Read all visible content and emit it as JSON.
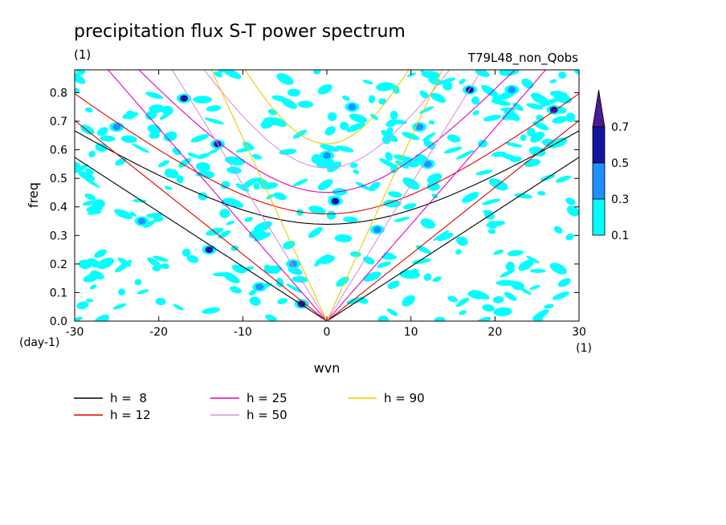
{
  "chart_data": {
    "type": "heatmap",
    "title": "precipitation flux S-T power spectrum",
    "subtitle_left": "(1)",
    "subtitle_right": "T79L48_non_Qobs",
    "xlabel": "wvn",
    "ylabel": "freq",
    "x_unit": "(1)",
    "y_unit": "(day-1)",
    "xlim": [
      -30,
      30
    ],
    "ylim": [
      0,
      0.88
    ],
    "xticks": [
      "-30",
      "-20",
      "-10",
      "0",
      "10",
      "20",
      "30"
    ],
    "yticks": [
      "0.0",
      "0.1",
      "0.2",
      "0.3",
      "0.4",
      "0.5",
      "0.6",
      "0.7",
      "0.8"
    ],
    "colorbar": {
      "levels": [
        "0.1",
        "0.3",
        "0.5",
        "0.7"
      ],
      "colors": [
        "#00ffff",
        "#1e90ff",
        "#1414a0",
        "#4b1a96"
      ]
    },
    "blobs": [
      {
        "x": -25,
        "y": 0.68,
        "v": 0.3
      },
      {
        "x": -17,
        "y": 0.78,
        "v": 0.5
      },
      {
        "x": -13,
        "y": 0.62,
        "v": 0.5
      },
      {
        "x": -14,
        "y": 0.25,
        "v": 0.5
      },
      {
        "x": -8,
        "y": 0.12,
        "v": 0.3
      },
      {
        "x": -3,
        "y": 0.06,
        "v": 0.5
      },
      {
        "x": 1,
        "y": 0.42,
        "v": 0.5
      },
      {
        "x": 0,
        "y": 0.58,
        "v": 0.3
      },
      {
        "x": 11,
        "y": 0.68,
        "v": 0.3
      },
      {
        "x": 17,
        "y": 0.81,
        "v": 0.5
      },
      {
        "x": 22,
        "y": 0.81,
        "v": 0.3
      },
      {
        "x": 27,
        "y": 0.74,
        "v": 0.5
      },
      {
        "x": 3,
        "y": 0.75,
        "v": 0.3
      },
      {
        "x": 12,
        "y": 0.55,
        "v": 0.3
      },
      {
        "x": -22,
        "y": 0.35,
        "v": 0.3
      },
      {
        "x": -4,
        "y": 0.2,
        "v": 0.3
      },
      {
        "x": 6,
        "y": 0.32,
        "v": 0.3
      }
    ],
    "curves": [
      {
        "name": "h =  8",
        "h": 8,
        "color": "#000000"
      },
      {
        "name": "h = 12",
        "h": 12,
        "color": "#e00000"
      },
      {
        "name": "h = 25",
        "h": 25,
        "color": "#e000c0"
      },
      {
        "name": "h = 50",
        "h": 50,
        "color": "#d890e8"
      },
      {
        "name": "h = 90",
        "h": 90,
        "color": "#f0c800"
      }
    ],
    "grid": false,
    "legend_position": "bottom-left"
  }
}
